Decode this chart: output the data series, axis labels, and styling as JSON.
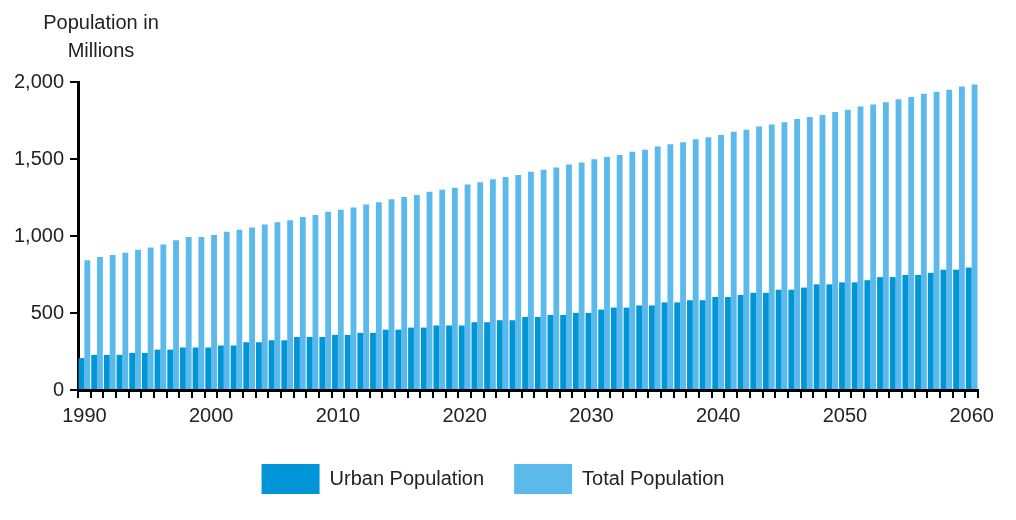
{
  "chart_data": {
    "type": "bar",
    "ylabel": "Population in Millions",
    "categories": [
      "1990",
      null,
      null,
      null,
      null,
      null,
      null,
      null,
      null,
      null,
      "2000",
      null,
      null,
      null,
      null,
      null,
      null,
      null,
      null,
      null,
      "2010",
      null,
      null,
      null,
      null,
      null,
      null,
      null,
      null,
      null,
      "2020",
      null,
      null,
      null,
      null,
      null,
      null,
      null,
      null,
      null,
      "2030",
      null,
      null,
      null,
      null,
      null,
      null,
      null,
      null,
      null,
      "2040",
      null,
      null,
      null,
      null,
      null,
      null,
      null,
      null,
      null,
      "2050",
      null,
      null,
      null,
      null,
      null,
      null,
      null,
      null,
      null,
      "2060"
    ],
    "series": [
      {
        "name": "Urban Population",
        "color": "#0095d6",
        "values": [
          207,
          228,
          228,
          228,
          241,
          241,
          262,
          262,
          276,
          276,
          276,
          289,
          289,
          310,
          310,
          323,
          323,
          344,
          344,
          344,
          358,
          358,
          371,
          371,
          392,
          392,
          405,
          405,
          419,
          419,
          419,
          440,
          440,
          453,
          453,
          474,
          474,
          487,
          487,
          501,
          501,
          522,
          535,
          535,
          549,
          549,
          569,
          569,
          583,
          583,
          604,
          604,
          617,
          631,
          631,
          651,
          651,
          665,
          686,
          686,
          699,
          699,
          713,
          733,
          733,
          747,
          747,
          761,
          781,
          781,
          795
        ]
      },
      {
        "name": "Total Population",
        "color": "#5bbaeb",
        "values": [
          843,
          863,
          877,
          891,
          911,
          925,
          945,
          973,
          993,
          993,
          1007,
          1027,
          1041,
          1055,
          1075,
          1089,
          1103,
          1123,
          1137,
          1157,
          1171,
          1185,
          1205,
          1219,
          1239,
          1253,
          1267,
          1287,
          1301,
          1314,
          1335,
          1349,
          1369,
          1383,
          1396,
          1417,
          1431,
          1444,
          1465,
          1478,
          1499,
          1513,
          1526,
          1547,
          1560,
          1581,
          1595,
          1608,
          1629,
          1642,
          1656,
          1677,
          1690,
          1711,
          1724,
          1738,
          1759,
          1772,
          1786,
          1806,
          1820,
          1841,
          1854,
          1868,
          1888,
          1902,
          1923,
          1936,
          1950,
          1970,
          1984
        ]
      }
    ],
    "ylim": [
      0,
      2000
    ],
    "yticks": [
      0,
      500,
      {
        "value": 1000,
        "label": "1,000"
      },
      {
        "value": 1500,
        "label": "1,500"
      },
      {
        "value": 2000,
        "label": "2,000"
      }
    ],
    "grid": false,
    "legend": "bottom"
  }
}
